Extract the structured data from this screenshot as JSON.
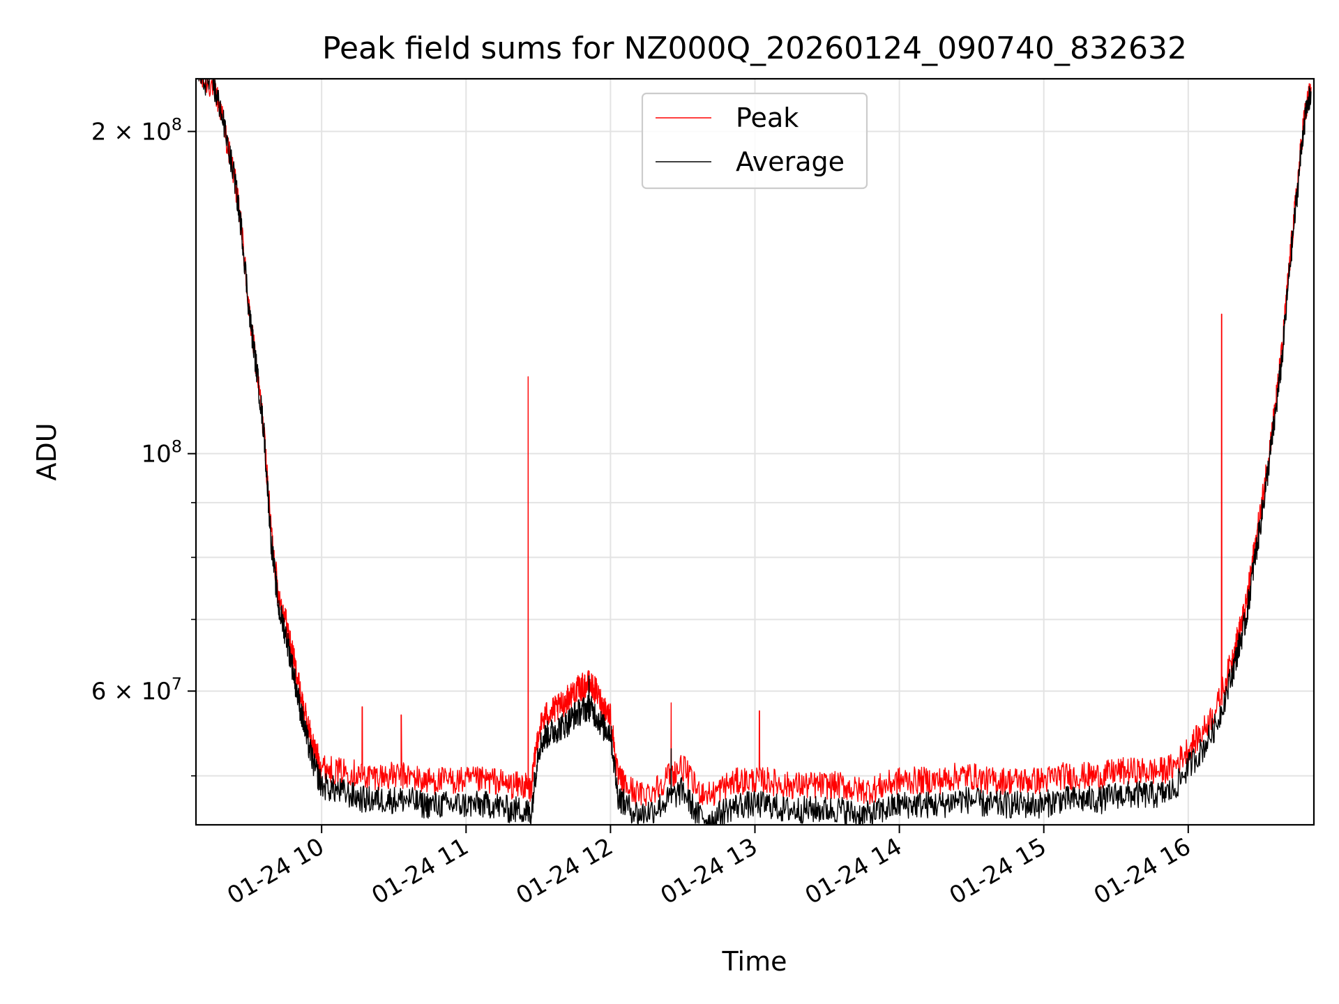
{
  "chart_data": {
    "type": "line",
    "title": "Peak field sums for NZ000Q_20260124_090740_832632",
    "xlabel": "Time",
    "ylabel": "ADU",
    "yscale": "log",
    "ylim": [
      45000000,
      224000000
    ],
    "xlim_hours": [
      9.13,
      16.87
    ],
    "x_ticks": [
      {
        "hour": 10,
        "label": "01-24 10"
      },
      {
        "hour": 11,
        "label": "01-24 11"
      },
      {
        "hour": 12,
        "label": "01-24 12"
      },
      {
        "hour": 13,
        "label": "01-24 13"
      },
      {
        "hour": 14,
        "label": "01-24 14"
      },
      {
        "hour": 15,
        "label": "01-24 15"
      },
      {
        "hour": 16,
        "label": "01-24 16"
      }
    ],
    "y_major_ticks": [
      {
        "value": 200000000,
        "mantissa": "2",
        "label": "2 × 10^8"
      },
      {
        "value": 100000000,
        "mantissa": "",
        "label": "10^8"
      },
      {
        "value": 60000000,
        "mantissa": "6",
        "label": "6 × 10^7"
      }
    ],
    "y_minor_ticks": [
      50000000,
      70000000,
      80000000,
      90000000
    ],
    "legend": {
      "position": "top-center",
      "entries": [
        "Peak",
        "Average"
      ]
    },
    "series": [
      {
        "name": "Peak",
        "color": "#ff0000",
        "points": [
          [
            9.15,
            224000000
          ],
          [
            9.25,
            221000000
          ],
          [
            9.3,
            210000000
          ],
          [
            9.4,
            180000000
          ],
          [
            9.45,
            160000000
          ],
          [
            9.5,
            135000000
          ],
          [
            9.55,
            120000000
          ],
          [
            9.6,
            105000000
          ],
          [
            9.65,
            85000000
          ],
          [
            9.7,
            74000000
          ],
          [
            9.75,
            70000000
          ],
          [
            9.8,
            65000000
          ],
          [
            9.85,
            60000000
          ],
          [
            9.9,
            56000000
          ],
          [
            9.95,
            53000000
          ],
          [
            10.0,
            51000000
          ],
          [
            10.1,
            50500000
          ],
          [
            10.2,
            50500000
          ],
          [
            10.3,
            50000000
          ],
          [
            10.4,
            50000000
          ],
          [
            10.5,
            50000000
          ],
          [
            10.6,
            50000000
          ],
          [
            10.7,
            49500000
          ],
          [
            10.8,
            49500000
          ],
          [
            10.9,
            49500000
          ],
          [
            11.0,
            49500000
          ],
          [
            11.1,
            49500000
          ],
          [
            11.2,
            49500000
          ],
          [
            11.3,
            49000000
          ],
          [
            11.4,
            49000000
          ],
          [
            11.45,
            48500000
          ],
          [
            11.5,
            55000000
          ],
          [
            11.55,
            57000000
          ],
          [
            11.6,
            57500000
          ],
          [
            11.65,
            58000000
          ],
          [
            11.7,
            59000000
          ],
          [
            11.75,
            60000000
          ],
          [
            11.8,
            60500000
          ],
          [
            11.85,
            61000000
          ],
          [
            11.9,
            60000000
          ],
          [
            11.95,
            58000000
          ],
          [
            12.0,
            57000000
          ],
          [
            12.05,
            50000000
          ],
          [
            12.1,
            49000000
          ],
          [
            12.2,
            48000000
          ],
          [
            12.3,
            48500000
          ],
          [
            12.4,
            50000000
          ],
          [
            12.5,
            51000000
          ],
          [
            12.6,
            48500000
          ],
          [
            12.7,
            48000000
          ],
          [
            12.8,
            49000000
          ],
          [
            12.9,
            49500000
          ],
          [
            13.0,
            49500000
          ],
          [
            13.1,
            49500000
          ],
          [
            13.2,
            49000000
          ],
          [
            13.3,
            49000000
          ],
          [
            13.4,
            49000000
          ],
          [
            13.5,
            49000000
          ],
          [
            13.6,
            49000000
          ],
          [
            13.7,
            48500000
          ],
          [
            13.8,
            48500000
          ],
          [
            13.9,
            49000000
          ],
          [
            14.0,
            49500000
          ],
          [
            14.1,
            49500000
          ],
          [
            14.2,
            49500000
          ],
          [
            14.3,
            49500000
          ],
          [
            14.4,
            50000000
          ],
          [
            14.5,
            50000000
          ],
          [
            14.6,
            49500000
          ],
          [
            14.7,
            49500000
          ],
          [
            14.8,
            49500000
          ],
          [
            14.9,
            49500000
          ],
          [
            15.0,
            49500000
          ],
          [
            15.1,
            50000000
          ],
          [
            15.2,
            50000000
          ],
          [
            15.3,
            50000000
          ],
          [
            15.4,
            50000000
          ],
          [
            15.5,
            50500000
          ],
          [
            15.6,
            50500000
          ],
          [
            15.7,
            50500000
          ],
          [
            15.8,
            50500000
          ],
          [
            15.9,
            51000000
          ],
          [
            16.0,
            53000000
          ],
          [
            16.1,
            55000000
          ],
          [
            16.2,
            58000000
          ],
          [
            16.3,
            64000000
          ],
          [
            16.35,
            68000000
          ],
          [
            16.4,
            72000000
          ],
          [
            16.45,
            80000000
          ],
          [
            16.5,
            88000000
          ],
          [
            16.55,
            98000000
          ],
          [
            16.6,
            110000000
          ],
          [
            16.65,
            125000000
          ],
          [
            16.7,
            150000000
          ],
          [
            16.75,
            175000000
          ],
          [
            16.8,
            205000000
          ],
          [
            16.85,
            220000000
          ]
        ],
        "spikes": [
          [
            10.28,
            58000000
          ],
          [
            10.55,
            57000000
          ],
          [
            11.43,
            118000000
          ],
          [
            12.42,
            58500000
          ],
          [
            13.03,
            57500000
          ],
          [
            16.23,
            135000000
          ]
        ]
      },
      {
        "name": "Average",
        "color": "#000000",
        "points": [
          [
            9.15,
            224000000
          ],
          [
            9.25,
            221000000
          ],
          [
            9.3,
            210000000
          ],
          [
            9.4,
            180000000
          ],
          [
            9.45,
            160000000
          ],
          [
            9.5,
            135000000
          ],
          [
            9.55,
            120000000
          ],
          [
            9.6,
            105000000
          ],
          [
            9.65,
            83000000
          ],
          [
            9.7,
            72000000
          ],
          [
            9.75,
            68000000
          ],
          [
            9.8,
            63000000
          ],
          [
            9.85,
            58000000
          ],
          [
            9.9,
            54000000
          ],
          [
            9.95,
            51000000
          ],
          [
            10.0,
            49000000
          ],
          [
            10.1,
            48500000
          ],
          [
            10.2,
            48000000
          ],
          [
            10.3,
            47500000
          ],
          [
            10.4,
            47500000
          ],
          [
            10.5,
            47500000
          ],
          [
            10.6,
            47500000
          ],
          [
            10.7,
            47000000
          ],
          [
            10.8,
            47000000
          ],
          [
            10.9,
            47000000
          ],
          [
            11.0,
            47000000
          ],
          [
            11.1,
            47000000
          ],
          [
            11.2,
            47000000
          ],
          [
            11.3,
            46500000
          ],
          [
            11.4,
            46500000
          ],
          [
            11.45,
            46000000
          ],
          [
            11.5,
            53000000
          ],
          [
            11.55,
            54500000
          ],
          [
            11.6,
            55000000
          ],
          [
            11.65,
            55500000
          ],
          [
            11.7,
            56000000
          ],
          [
            11.75,
            57000000
          ],
          [
            11.8,
            57500000
          ],
          [
            11.85,
            58000000
          ],
          [
            11.9,
            57000000
          ],
          [
            11.95,
            55500000
          ],
          [
            12.0,
            55000000
          ],
          [
            12.05,
            48000000
          ],
          [
            12.1,
            47000000
          ],
          [
            12.2,
            46000000
          ],
          [
            12.3,
            46500000
          ],
          [
            12.4,
            47500000
          ],
          [
            12.5,
            48500000
          ],
          [
            12.6,
            46000000
          ],
          [
            12.7,
            45500000
          ],
          [
            12.8,
            46500000
          ],
          [
            12.9,
            47000000
          ],
          [
            13.0,
            47000000
          ],
          [
            13.1,
            47000000
          ],
          [
            13.2,
            46500000
          ],
          [
            13.3,
            46500000
          ],
          [
            13.4,
            46500000
          ],
          [
            13.5,
            46500000
          ],
          [
            13.6,
            46500000
          ],
          [
            13.7,
            46000000
          ],
          [
            13.8,
            46000000
          ],
          [
            13.9,
            46500000
          ],
          [
            14.0,
            47000000
          ],
          [
            14.1,
            47000000
          ],
          [
            14.2,
            47000000
          ],
          [
            14.3,
            47000000
          ],
          [
            14.4,
            47500000
          ],
          [
            14.5,
            47500000
          ],
          [
            14.6,
            47000000
          ],
          [
            14.7,
            47000000
          ],
          [
            14.8,
            47000000
          ],
          [
            14.9,
            47000000
          ],
          [
            15.0,
            47000000
          ],
          [
            15.1,
            47500000
          ],
          [
            15.2,
            47500000
          ],
          [
            15.3,
            47500000
          ],
          [
            15.4,
            47500000
          ],
          [
            15.5,
            48000000
          ],
          [
            15.6,
            48000000
          ],
          [
            15.7,
            48000000
          ],
          [
            15.8,
            48000000
          ],
          [
            15.9,
            48500000
          ],
          [
            16.0,
            51000000
          ],
          [
            16.1,
            53000000
          ],
          [
            16.2,
            56000000
          ],
          [
            16.3,
            62000000
          ],
          [
            16.35,
            66000000
          ],
          [
            16.4,
            70000000
          ],
          [
            16.45,
            78000000
          ],
          [
            16.5,
            86000000
          ],
          [
            16.55,
            96000000
          ],
          [
            16.6,
            108000000
          ],
          [
            16.65,
            123000000
          ],
          [
            16.7,
            148000000
          ],
          [
            16.75,
            173000000
          ],
          [
            16.8,
            203000000
          ],
          [
            16.85,
            218000000
          ]
        ],
        "spikes": [
          [
            12.42,
            53000000
          ],
          [
            11.85,
            62000000
          ]
        ]
      }
    ]
  }
}
